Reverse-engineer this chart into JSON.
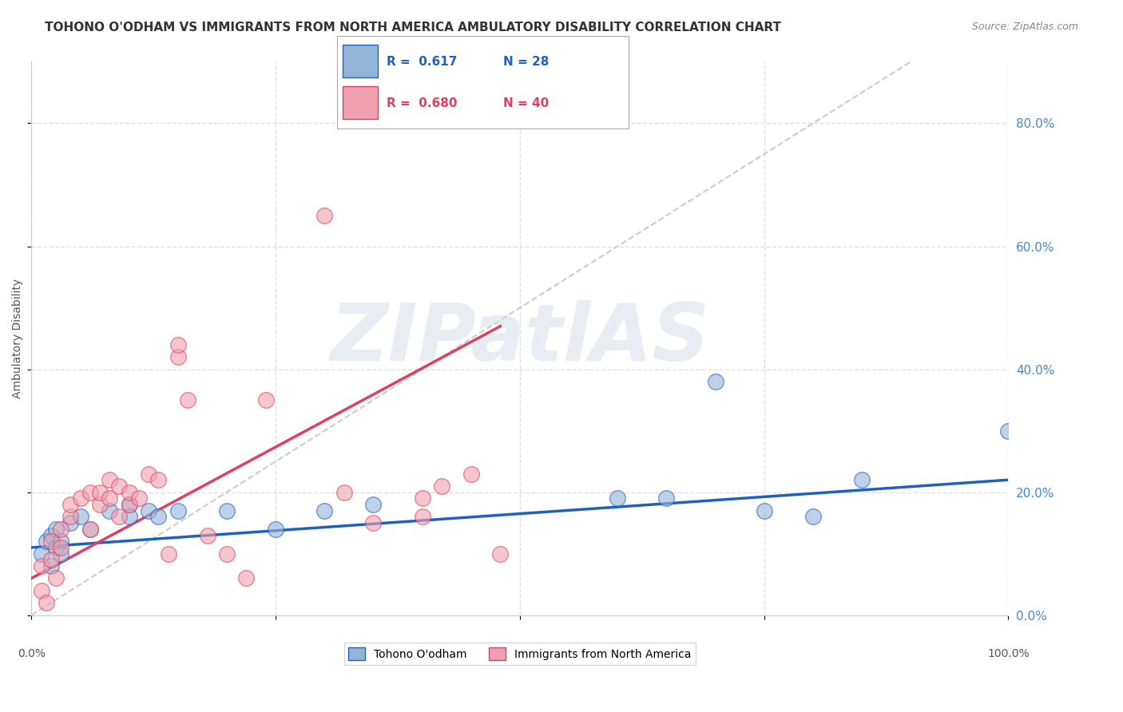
{
  "title": "TOHONO O'ODHAM VS IMMIGRANTS FROM NORTH AMERICA AMBULATORY DISABILITY CORRELATION CHART",
  "source": "Source: ZipAtlas.com",
  "ylabel": "Ambulatory Disability",
  "yticks_right": [
    0.0,
    0.2,
    0.4,
    0.6,
    0.8
  ],
  "ytick_labels_right": [
    "0.0%",
    "20.0%",
    "40.0%",
    "60.0%",
    "80.0%"
  ],
  "xticks": [
    0.0,
    0.25,
    0.5,
    0.75,
    1.0
  ],
  "xlim": [
    0.0,
    1.0
  ],
  "ylim": [
    0.0,
    0.9
  ],
  "legend_blue_r": "0.617",
  "legend_blue_n": "28",
  "legend_pink_r": "0.680",
  "legend_pink_n": "40",
  "legend_label_blue": "Tohono O'odham",
  "legend_label_pink": "Immigrants from North America",
  "blue_color": "#92b4d9",
  "pink_color": "#f0a0b0",
  "blue_line_color": "#2060c0",
  "pink_line_color": "#e04060",
  "ref_line_color": "#cccccc",
  "watermark_text": "ZIPatlAS",
  "watermark_color": "#d0dce8",
  "blue_dots_x": [
    0.01,
    0.015,
    0.02,
    0.02,
    0.025,
    0.025,
    0.03,
    0.03,
    0.04,
    0.05,
    0.06,
    0.08,
    0.1,
    0.1,
    0.12,
    0.13,
    0.15,
    0.2,
    0.25,
    0.3,
    0.35,
    0.6,
    0.65,
    0.7,
    0.75,
    0.8,
    0.85,
    1.0
  ],
  "blue_dots_y": [
    0.1,
    0.12,
    0.08,
    0.13,
    0.11,
    0.14,
    0.12,
    0.1,
    0.15,
    0.16,
    0.14,
    0.17,
    0.18,
    0.16,
    0.17,
    0.16,
    0.17,
    0.17,
    0.14,
    0.17,
    0.18,
    0.19,
    0.19,
    0.38,
    0.17,
    0.16,
    0.22,
    0.3
  ],
  "pink_dots_x": [
    0.01,
    0.01,
    0.015,
    0.02,
    0.02,
    0.025,
    0.03,
    0.03,
    0.04,
    0.04,
    0.05,
    0.06,
    0.06,
    0.07,
    0.07,
    0.08,
    0.08,
    0.09,
    0.09,
    0.1,
    0.1,
    0.11,
    0.12,
    0.13,
    0.14,
    0.15,
    0.15,
    0.16,
    0.18,
    0.2,
    0.22,
    0.24,
    0.3,
    0.32,
    0.35,
    0.4,
    0.4,
    0.42,
    0.45,
    0.48
  ],
  "pink_dots_y": [
    0.08,
    0.04,
    0.02,
    0.12,
    0.09,
    0.06,
    0.14,
    0.11,
    0.16,
    0.18,
    0.19,
    0.2,
    0.14,
    0.18,
    0.2,
    0.19,
    0.22,
    0.16,
    0.21,
    0.18,
    0.2,
    0.19,
    0.23,
    0.22,
    0.1,
    0.42,
    0.44,
    0.35,
    0.13,
    0.1,
    0.06,
    0.35,
    0.65,
    0.2,
    0.15,
    0.19,
    0.16,
    0.21,
    0.23,
    0.1
  ],
  "blue_line_x": [
    0.0,
    1.0
  ],
  "blue_line_y": [
    0.11,
    0.22
  ],
  "pink_line_x": [
    0.0,
    0.48
  ],
  "pink_line_y": [
    0.06,
    0.47
  ],
  "ref_line_x": [
    0.0,
    0.9
  ],
  "ref_line_y": [
    0.0,
    0.9
  ],
  "background_color": "#ffffff",
  "grid_color": "#e0e0e8",
  "title_fontsize": 11,
  "axis_label_fontsize": 10,
  "tick_fontsize": 10,
  "source_fontsize": 9
}
